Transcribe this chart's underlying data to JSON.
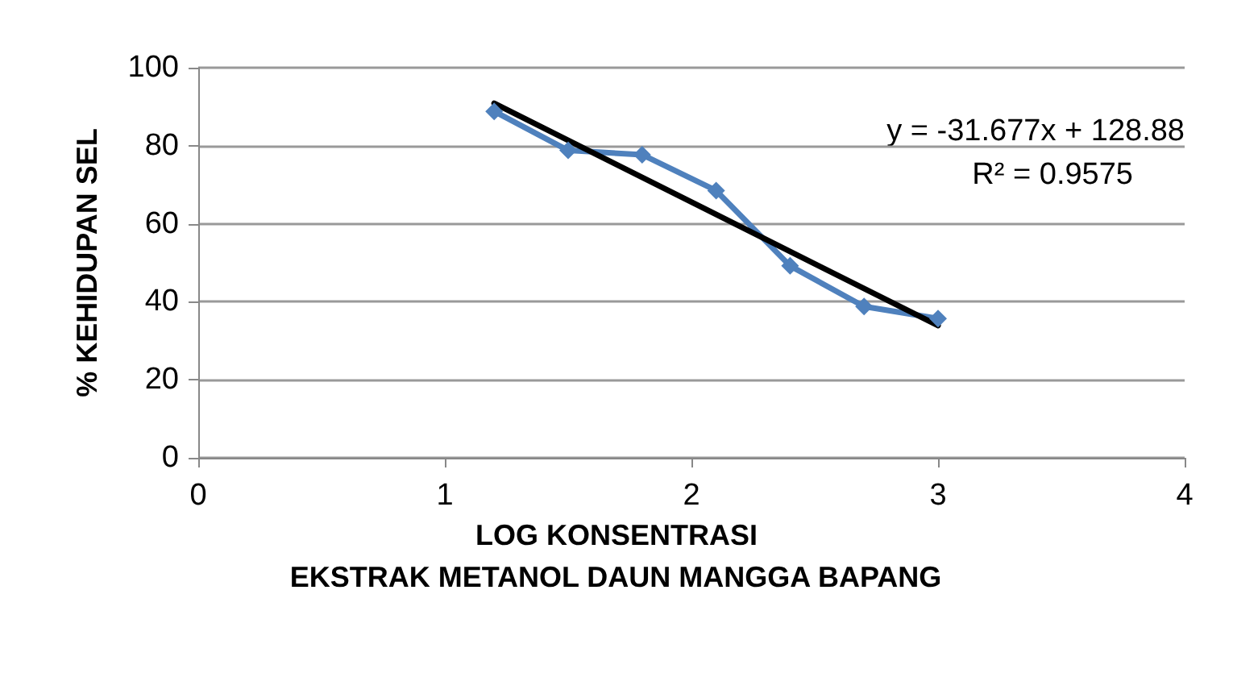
{
  "chart_data": {
    "type": "line",
    "xlabel": "LOG KONSENTRASI\nEKSTRAK METANOL DAUN MANGGA BAPANG",
    "ylabel": "% KEHIDUPAN SEL",
    "series": [
      {
        "color": "#4f81bd",
        "x": [
          1.2,
          1.5,
          1.8,
          2.1,
          2.4,
          2.7,
          3.0
        ],
        "values": [
          88.8,
          78.8,
          77.7,
          68.5,
          49.2,
          38.8,
          35.7
        ],
        "marker": "diamond"
      },
      {
        "color": "#000000",
        "x": [
          1.2,
          3.0
        ],
        "values": [
          90.9,
          33.9
        ],
        "marker": "none"
      }
    ],
    "xlim": [
      0,
      4
    ],
    "xticks": [
      0,
      1,
      2,
      3,
      4
    ],
    "ylim": [
      0,
      100
    ],
    "yticks": [
      0,
      20,
      40,
      60,
      80,
      100
    ],
    "grid": "y",
    "annotations": [
      "y = -31.677x + 128.88",
      "R² = 0.9575"
    ]
  }
}
